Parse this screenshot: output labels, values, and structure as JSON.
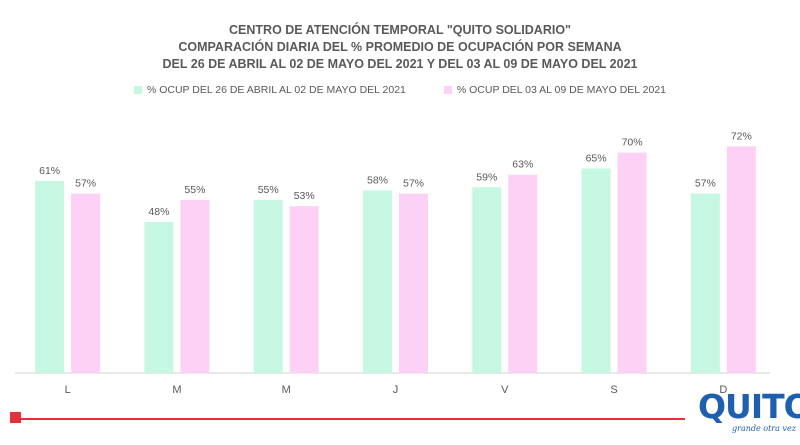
{
  "chart_data": {
    "type": "bar",
    "title_lines": [
      "CENTRO DE ATENCIÓN TEMPORAL \"QUITO SOLIDARIO\"",
      "COMPARACIÓN  DIARIA DEL %  PROMEDIO DE OCUPACIÓN POR SEMANA",
      "DEL 26 DE ABRIL AL 02 DE MAYO DEL 2021 Y DEL 03 AL 09 DE MAYO DEL 2021"
    ],
    "categories": [
      "L",
      "M",
      "M",
      "J",
      "V",
      "S",
      "D"
    ],
    "series": [
      {
        "name": "% OCUP DEL 26 DE ABRIL AL 02 DE MAYO DEL  2021",
        "values": [
          61,
          48,
          55,
          58,
          59,
          65,
          57
        ],
        "labels": [
          "61%",
          "48%",
          "55%",
          "58%",
          "59%",
          "65%",
          "57%"
        ],
        "color": "#c6f7e2"
      },
      {
        "name": "% OCUP DEL 03 AL 09 DE MAYO DEL  2021",
        "values": [
          57,
          55,
          53,
          57,
          63,
          70,
          72
        ],
        "labels": [
          "57%",
          "55%",
          "53%",
          "57%",
          "63%",
          "70%",
          "72%"
        ],
        "color": "#fdd0f5"
      }
    ],
    "ylim": [
      0,
      100
    ],
    "grid": false,
    "legend_position": "top-center"
  },
  "branding": {
    "logo_text": "QUITO",
    "tagline": "grande otra vez",
    "accent_color": "#e5323a",
    "logo_color": "#1f5fb0"
  }
}
